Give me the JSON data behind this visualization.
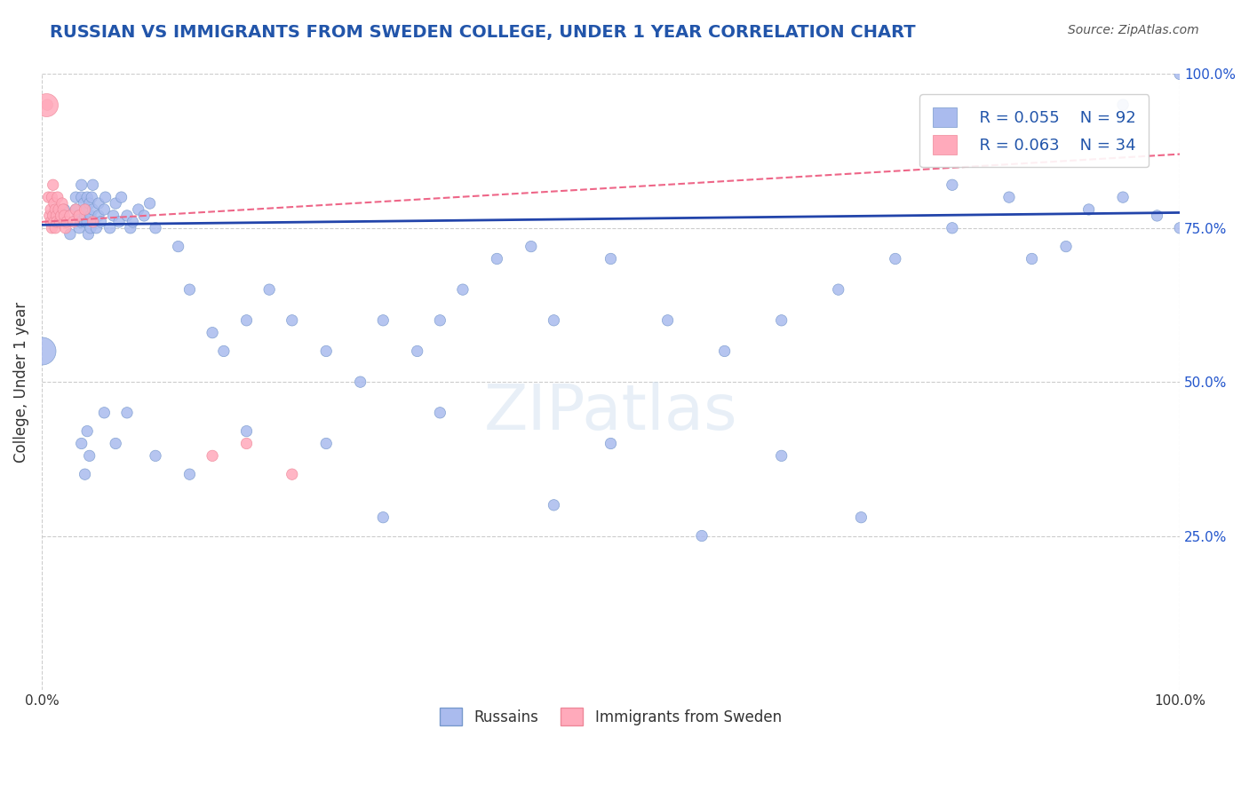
{
  "title": "RUSSIAN VS IMMIGRANTS FROM SWEDEN COLLEGE, UNDER 1 YEAR CORRELATION CHART",
  "source": "Source: ZipAtlas.com",
  "xlabel": "",
  "ylabel": "College, Under 1 year",
  "xlim": [
    0,
    1
  ],
  "ylim": [
    0,
    1
  ],
  "xtick_labels": [
    "0.0%",
    "100.0%"
  ],
  "ytick_labels_right": [
    "100.0%",
    "75.0%",
    "50.0%",
    "25.0%"
  ],
  "ytick_positions_right": [
    1.0,
    0.75,
    0.5,
    0.25
  ],
  "grid_color": "#cccccc",
  "background_color": "#ffffff",
  "title_color": "#2255aa",
  "legend_R_blue": "0.055",
  "legend_N_blue": "92",
  "legend_R_pink": "0.063",
  "legend_N_pink": "34",
  "legend_text_color": "#2255aa",
  "watermark": "ZIPatlas",
  "blue_color": "#aabbee",
  "blue_edge": "#7799cc",
  "pink_color": "#ffaabb",
  "pink_edge": "#ee8899",
  "blue_scatter": {
    "x": [
      0.02,
      0.025,
      0.03,
      0.03,
      0.032,
      0.033,
      0.034,
      0.035,
      0.035,
      0.037,
      0.038,
      0.038,
      0.039,
      0.04,
      0.04,
      0.041,
      0.042,
      0.043,
      0.043,
      0.044,
      0.045,
      0.045,
      0.046,
      0.048,
      0.05,
      0.05,
      0.052,
      0.055,
      0.056,
      0.06,
      0.063,
      0.065,
      0.068,
      0.07,
      0.075,
      0.078,
      0.08,
      0.085,
      0.09,
      0.095,
      0.1,
      0.12,
      0.13,
      0.15,
      0.16,
      0.18,
      0.2,
      0.22,
      0.25,
      0.28,
      0.3,
      0.33,
      0.35,
      0.37,
      0.4,
      0.43,
      0.45,
      0.5,
      0.55,
      0.6,
      0.65,
      0.7,
      0.75,
      0.8,
      0.85,
      0.87,
      0.9,
      0.95,
      1.0,
      0.035,
      0.038,
      0.04,
      0.042,
      0.055,
      0.065,
      0.075,
      0.1,
      0.13,
      0.18,
      0.25,
      0.35,
      0.5,
      0.65,
      0.8,
      0.92,
      0.95,
      0.98,
      1.0,
      0.3,
      0.45,
      0.58,
      0.72
    ],
    "y": [
      0.78,
      0.74,
      0.78,
      0.8,
      0.77,
      0.75,
      0.76,
      0.8,
      0.82,
      0.79,
      0.76,
      0.77,
      0.78,
      0.8,
      0.76,
      0.74,
      0.79,
      0.77,
      0.75,
      0.8,
      0.78,
      0.82,
      0.76,
      0.75,
      0.77,
      0.79,
      0.76,
      0.78,
      0.8,
      0.75,
      0.77,
      0.79,
      0.76,
      0.8,
      0.77,
      0.75,
      0.76,
      0.78,
      0.77,
      0.79,
      0.75,
      0.72,
      0.65,
      0.58,
      0.55,
      0.6,
      0.65,
      0.6,
      0.55,
      0.5,
      0.6,
      0.55,
      0.6,
      0.65,
      0.7,
      0.72,
      0.6,
      0.7,
      0.6,
      0.55,
      0.6,
      0.65,
      0.7,
      0.75,
      0.8,
      0.7,
      0.72,
      0.95,
      1.0,
      0.4,
      0.35,
      0.42,
      0.38,
      0.45,
      0.4,
      0.45,
      0.38,
      0.35,
      0.42,
      0.4,
      0.45,
      0.4,
      0.38,
      0.82,
      0.78,
      0.8,
      0.77,
      0.75,
      0.28,
      0.3,
      0.25,
      0.28
    ],
    "sizes": [
      80,
      80,
      80,
      80,
      80,
      80,
      80,
      80,
      80,
      80,
      80,
      80,
      80,
      80,
      80,
      80,
      80,
      80,
      80,
      80,
      80,
      80,
      80,
      80,
      80,
      80,
      80,
      80,
      80,
      80,
      80,
      80,
      80,
      80,
      80,
      80,
      80,
      80,
      80,
      80,
      80,
      80,
      80,
      80,
      80,
      80,
      80,
      80,
      80,
      80,
      80,
      80,
      80,
      80,
      80,
      80,
      80,
      80,
      80,
      80,
      80,
      80,
      80,
      80,
      80,
      80,
      80,
      80,
      80,
      80,
      80,
      80,
      80,
      80,
      80,
      80,
      80,
      80,
      80,
      80,
      80,
      80,
      80,
      80,
      80,
      80,
      80,
      80,
      80,
      80,
      80,
      80
    ]
  },
  "pink_scatter": {
    "x": [
      0.005,
      0.006,
      0.007,
      0.008,
      0.008,
      0.009,
      0.009,
      0.01,
      0.01,
      0.011,
      0.011,
      0.012,
      0.012,
      0.013,
      0.013,
      0.014,
      0.015,
      0.016,
      0.017,
      0.018,
      0.019,
      0.02,
      0.02,
      0.021,
      0.022,
      0.025,
      0.028,
      0.03,
      0.033,
      0.038,
      0.045,
      0.15,
      0.18,
      0.22
    ],
    "y": [
      0.95,
      0.8,
      0.77,
      0.78,
      0.76,
      0.75,
      0.8,
      0.77,
      0.82,
      0.76,
      0.79,
      0.75,
      0.78,
      0.77,
      0.76,
      0.8,
      0.78,
      0.76,
      0.77,
      0.79,
      0.78,
      0.76,
      0.77,
      0.75,
      0.76,
      0.77,
      0.76,
      0.78,
      0.77,
      0.78,
      0.76,
      0.38,
      0.4,
      0.35
    ],
    "sizes": [
      80,
      80,
      80,
      80,
      80,
      80,
      80,
      80,
      80,
      80,
      80,
      80,
      80,
      80,
      80,
      80,
      80,
      80,
      80,
      80,
      80,
      80,
      80,
      80,
      80,
      80,
      80,
      80,
      80,
      80,
      80,
      80,
      80,
      80
    ]
  },
  "blue_line": {
    "x0": 0.0,
    "x1": 1.0,
    "y0": 0.755,
    "y1": 0.775
  },
  "pink_line": {
    "x0": 0.0,
    "x1": 1.0,
    "y0": 0.76,
    "y1": 0.87
  }
}
